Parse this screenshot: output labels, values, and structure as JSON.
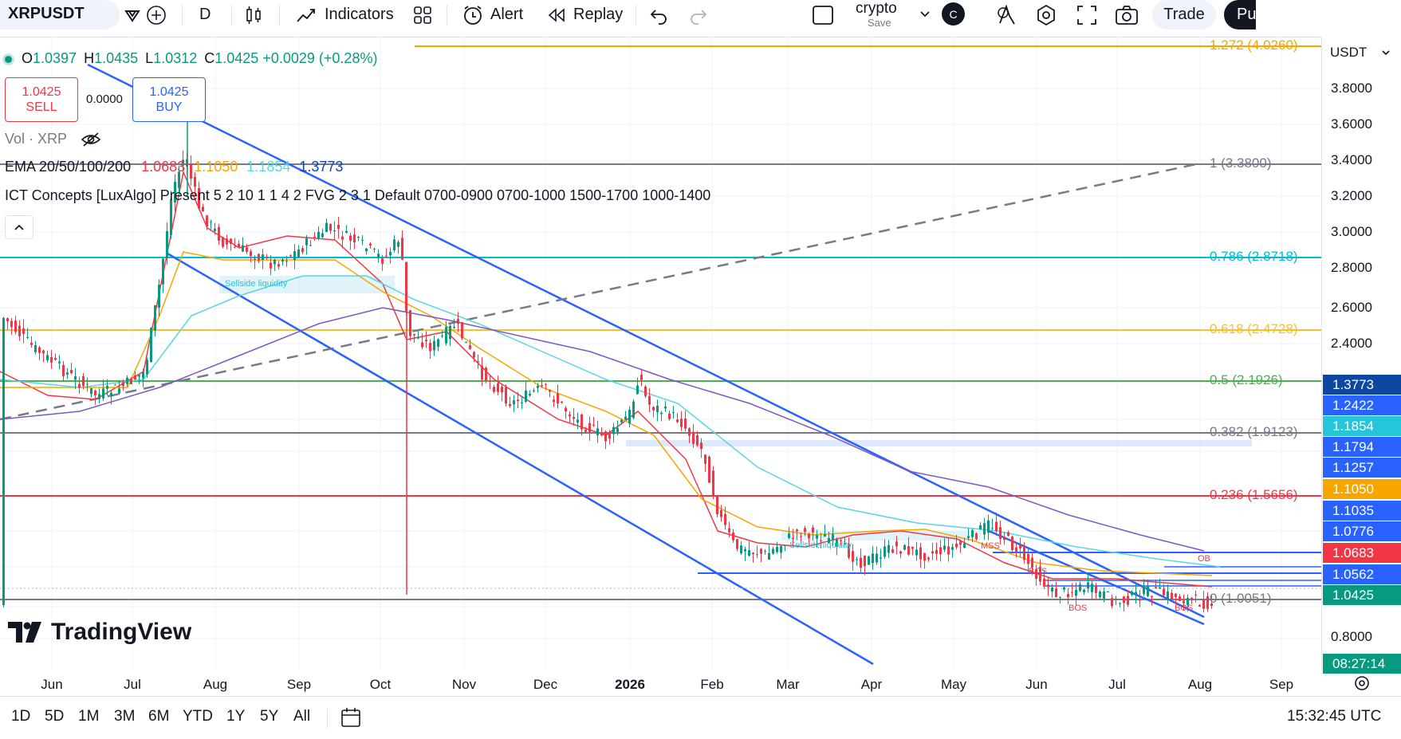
{
  "toolbar": {
    "symbol": "XRPUSDT",
    "interval": "D",
    "indicators_label": "Indicators",
    "alert_label": "Alert",
    "replay_label": "Replay",
    "layout_name": "crypto",
    "layout_save": "Save",
    "avatar_letter": "C",
    "trade_label": "Trade",
    "publish_label": "Pu"
  },
  "legend": {
    "open_label": "O",
    "open": "1.0397",
    "high_label": "H",
    "high": "1.0435",
    "low_label": "L",
    "low": "1.0312",
    "close_label": "C",
    "close": "1.0425",
    "change": "+0.0029 (+0.28%)",
    "sell_price": "1.0425",
    "sell_label": "SELL",
    "spread": "0.0000",
    "buy_price": "1.0425",
    "buy_label": "BUY",
    "vol_label": "Vol · XRP",
    "ema_label": "EMA 20/50/100/200",
    "ema20": "1.0683",
    "ema50": "1.1050",
    "ema100": "1.1854",
    "ema200": "1.3773",
    "ict_label": "ICT Concepts [LuxAlgo] Present 5 2 10 1 1 4 2 FVG 2 3 1 Default 0700-0900 0700-1000 1500-1700 1000-1400"
  },
  "colors": {
    "up": "#089981",
    "down": "#f23645",
    "ema20": "#f23645",
    "ema50": "#f7a600",
    "ema100": "#5ad6e0",
    "ema200": "#7e57c2",
    "channel": "#2962ff"
  },
  "chart_data": {
    "type": "candlestick",
    "symbol": "XRPUSDT",
    "interval": "D",
    "y_scale": "log",
    "currency": "USDT",
    "y_ticks": [
      "3.8000",
      "3.6000",
      "3.4000",
      "3.2000",
      "3.0000",
      "2.8000",
      "2.6000",
      "2.4000",
      "1.0562",
      "0.8000"
    ],
    "x_ticks": [
      "Jun",
      "Jul",
      "Aug",
      "Sep",
      "Oct",
      "Nov",
      "Dec",
      "2026",
      "Feb",
      "Mar",
      "Apr",
      "May",
      "Jun",
      "Jul",
      "Aug",
      "Sep"
    ],
    "fib_levels": [
      {
        "label": "1.272 (4.0260)",
        "value": 4.026,
        "color": "#f7a600"
      },
      {
        "label": "1 (3.3800)",
        "value": 3.38,
        "color": "#787b86"
      },
      {
        "label": "0.786 (2.8718)",
        "value": 2.8718,
        "color": "#00bcd4"
      },
      {
        "label": "0.618 (2.4728)",
        "value": 2.4728,
        "color": "#f9c02e"
      },
      {
        "label": "0.5 (2.1926)",
        "value": 2.1926,
        "color": "#4caf50"
      },
      {
        "label": "0.382 (1.9123)",
        "value": 1.9123,
        "color": "#787b86"
      },
      {
        "label": "0.236 (1.5656)",
        "value": 1.5656,
        "color": "#f23645"
      },
      {
        "label": "0 (1.0051)",
        "value": 1.0051,
        "color": "#787b86"
      }
    ],
    "price_tags": [
      {
        "value": "1.3773",
        "color": "#0d47a1"
      },
      {
        "value": "1.2422",
        "color": "#2962ff"
      },
      {
        "value": "1.1854",
        "color": "#26c6da"
      },
      {
        "value": "1.1794",
        "color": "#2962ff"
      },
      {
        "value": "1.1257",
        "color": "#2962ff"
      },
      {
        "value": "1.1050",
        "color": "#f7a600"
      },
      {
        "value": "1.1035",
        "color": "#2962ff"
      },
      {
        "value": "1.0776",
        "color": "#2962ff"
      },
      {
        "value": "1.0683",
        "color": "#f23645"
      },
      {
        "value": "1.0562",
        "color": "#2962ff"
      },
      {
        "value": "1.0425",
        "color": "#089981"
      }
    ],
    "countdown": "08:27:14",
    "annotations": [
      "Sellside liquidity",
      "Sellside liquidity",
      "MSS",
      "OB",
      "BOS",
      "BOS",
      "BOS"
    ],
    "series": [
      {
        "name": "EMA 20",
        "color": "#f23645"
      },
      {
        "name": "EMA 50",
        "color": "#f7a600"
      },
      {
        "name": "EMA 100",
        "color": "#5ad6e0"
      },
      {
        "name": "EMA 200",
        "color": "#7e57c2"
      }
    ]
  },
  "bottom": {
    "ranges": [
      "1D",
      "5D",
      "1M",
      "3M",
      "6M",
      "YTD",
      "1Y",
      "5Y",
      "All"
    ],
    "clock": "15:32:45 UTC",
    "brand": "TradingView",
    "currency_select": "USDT"
  }
}
